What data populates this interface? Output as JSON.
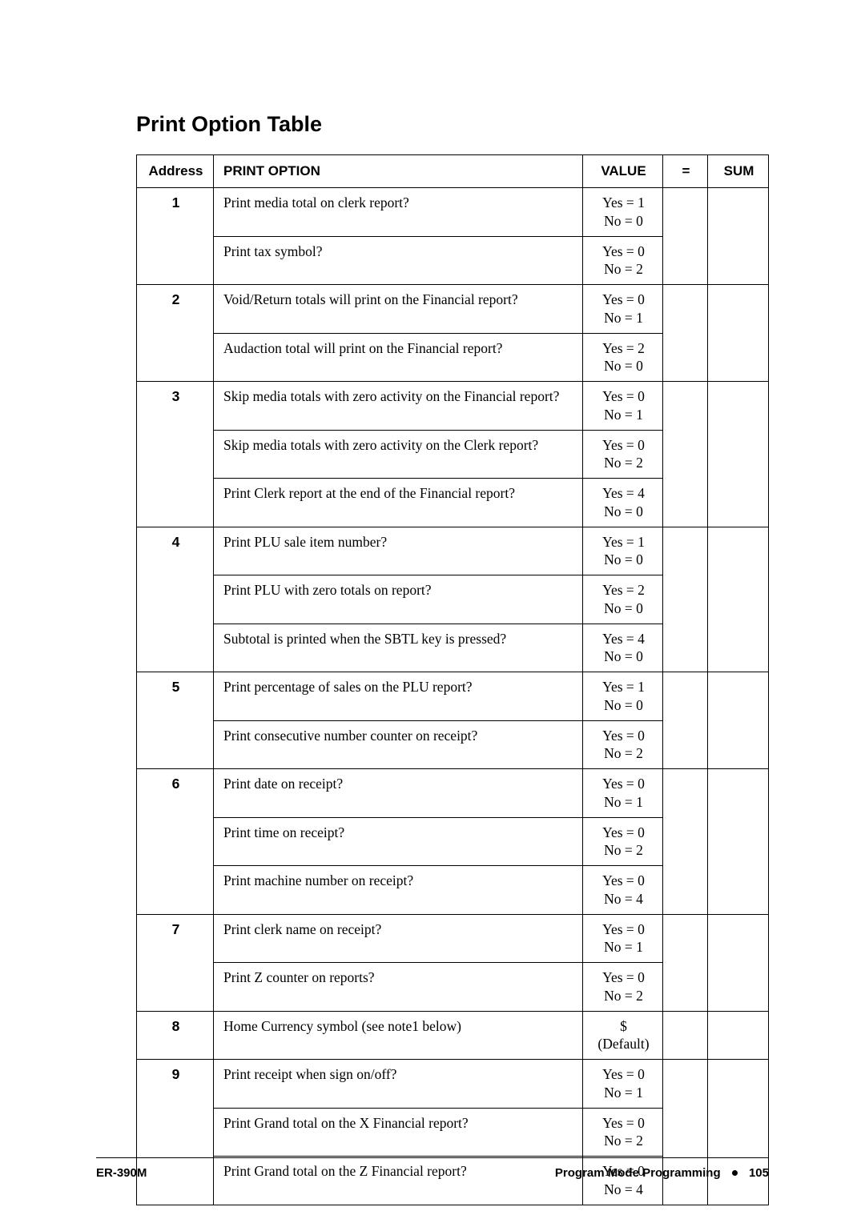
{
  "colors": {
    "text": "#000000",
    "background": "#ffffff",
    "border": "#000000",
    "footer_rule": "#000000"
  },
  "fonts": {
    "heading_family": "Arial",
    "heading_size_pt": 20,
    "body_family": "Times New Roman",
    "body_size_pt": 13
  },
  "title": "Print Option Table",
  "headers": {
    "address": "Address",
    "print_option": "PRINT OPTION",
    "value": "VALUE",
    "eq": "=",
    "sum": "SUM"
  },
  "rows": [
    {
      "addr": "1",
      "option": "Print media total on clerk report?",
      "value": "Yes = 1\nNo = 0"
    },
    {
      "addr": "",
      "option": "Print tax symbol?",
      "value": "Yes = 0\nNo = 2"
    },
    {
      "addr": "2",
      "option": "Void/Return totals will print on the Financial report?",
      "value": "Yes = 0\nNo = 1"
    },
    {
      "addr": "",
      "option": "Audaction total will print on the Financial report?",
      "value": "Yes = 2\nNo = 0"
    },
    {
      "addr": "3",
      "option": "Skip media totals with zero activity on the Financial report?",
      "value": "Yes = 0\nNo = 1"
    },
    {
      "addr": "",
      "option": "Skip media totals with zero activity on the Clerk report?",
      "value": "Yes = 0\nNo = 2"
    },
    {
      "addr": "",
      "option": "Print Clerk report at the end of the Financial report?",
      "value": "Yes = 4\nNo = 0"
    },
    {
      "addr": "4",
      "option": "Print PLU sale item number?",
      "value": "Yes = 1\nNo = 0"
    },
    {
      "addr": "",
      "option": "Print PLU with zero totals on report?",
      "value": "Yes = 2\nNo = 0"
    },
    {
      "addr": "",
      "option": "Subtotal is printed when the SBTL key is pressed?",
      "value": "Yes = 4\nNo = 0"
    },
    {
      "addr": "5",
      "option": "Print percentage of sales on the PLU report?",
      "value": "Yes = 1\nNo = 0"
    },
    {
      "addr": "",
      "option": "Print consecutive number counter on receipt?",
      "value": "Yes = 0\nNo = 2"
    },
    {
      "addr": "6",
      "option": "Print date on receipt?",
      "value": "Yes = 0\nNo = 1"
    },
    {
      "addr": "",
      "option": "Print time on receipt?",
      "value": "Yes = 0\nNo = 2"
    },
    {
      "addr": "",
      "option": "Print machine number on receipt?",
      "value": "Yes = 0\nNo = 4"
    },
    {
      "addr": "7",
      "option": "Print clerk name on receipt?",
      "value": "Yes = 0\nNo = 1"
    },
    {
      "addr": "",
      "option": "Print Z counter on reports?",
      "value": "Yes = 0\nNo = 2"
    },
    {
      "addr": "8",
      "option": "Home Currency symbol (see note1 below)",
      "value": "$\n(Default)"
    },
    {
      "addr": "9",
      "option": "Print receipt when sign on/off?",
      "value": "Yes = 0\nNo = 1"
    },
    {
      "addr": "",
      "option": "Print Grand total on the X Financial report?",
      "value": "Yes = 0\nNo = 2"
    },
    {
      "addr": "",
      "option": "Print Grand total on the Z Financial report?",
      "value": "Yes = 0\nNo = 4"
    }
  ],
  "groups": [
    2,
    2,
    3,
    3,
    2,
    3,
    2,
    1,
    3
  ],
  "footer": {
    "left": "ER-390M",
    "right_label": "Program Mode Programming",
    "page": "105"
  }
}
